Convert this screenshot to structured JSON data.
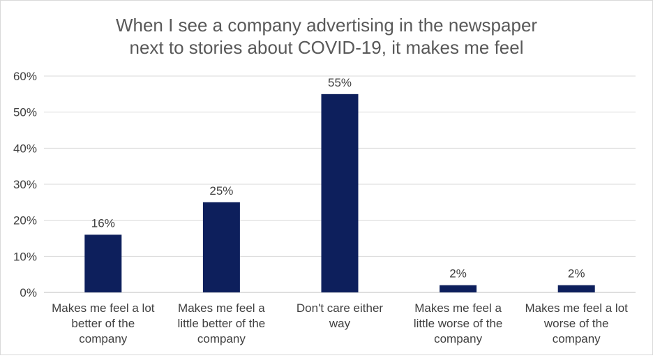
{
  "chart_data": {
    "type": "bar",
    "title_lines": [
      "When I see a company advertising in the newspaper",
      "next to stories about COVID-19, it makes me feel"
    ],
    "categories": [
      [
        "Makes me feel a lot",
        "better of the",
        "company"
      ],
      [
        "Makes me feel a",
        "little better of the",
        "company"
      ],
      [
        "Don't care either",
        "way"
      ],
      [
        "Makes me feel a",
        "little worse of the",
        "company"
      ],
      [
        "Makes me feel a lot",
        "worse of the",
        "company"
      ]
    ],
    "values": [
      16,
      25,
      55,
      2,
      2
    ],
    "data_labels": [
      "16%",
      "25%",
      "55%",
      "2%",
      "2%"
    ],
    "ylim": [
      0,
      60
    ],
    "ytick_values": [
      0,
      10,
      20,
      30,
      40,
      50,
      60
    ],
    "ytick_labels": [
      "0%",
      "10%",
      "20%",
      "30%",
      "40%",
      "50%",
      "60%"
    ],
    "xlabel": "",
    "ylabel": "",
    "grid": true,
    "legend": "none",
    "colors": {
      "bar": "#0d1f5c",
      "title": "#595959",
      "text": "#404040",
      "grid": "#d9d9d9",
      "axis": "#bfbfbf"
    }
  }
}
